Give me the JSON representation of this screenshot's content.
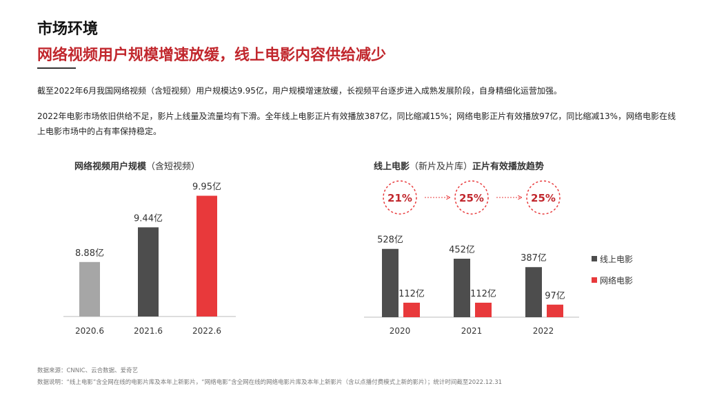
{
  "section_title": "市场环境",
  "headline": "网络视频用户规模增速放缓，线上电影内容供给减少",
  "paragraphs": [
    "截至2022年6月我国网络视频（含短视频）用户规模达9.95亿，用户规模增速放缓，长视频平台逐步进入成熟发展阶段，自身精细化运营加强。",
    "2022年电影市场依旧供给不足，影片上线量及流量均有下滑。全年线上电影正片有效播放387亿，同比缩减15%；网络电影正片有效播放97亿，同比缩减13%，网络电影在线上电影市场中的占有率保持稳定。"
  ],
  "chart_data": [
    {
      "type": "bar",
      "title_bold": "网络视频用户规模",
      "title_rest": "（含短视频）",
      "categories": [
        "2020.6",
        "2021.6",
        "2022.6"
      ],
      "values": [
        8.88,
        9.44,
        9.95
      ],
      "value_labels": [
        "8.88亿",
        "9.44亿",
        "9.95亿"
      ],
      "bar_colors": [
        "#a6a6a6",
        "#4d4d4d",
        "#e8393b"
      ]
    },
    {
      "type": "bar",
      "title_bold": "线上电影",
      "title_mid": "（新片及片库）",
      "title_bold2": "正片有效播放趋势",
      "categories": [
        "2020",
        "2021",
        "2022"
      ],
      "series": [
        {
          "name": "线上电影",
          "values": [
            528,
            452,
            387
          ],
          "labels": [
            "528亿",
            "452亿",
            "387亿"
          ],
          "color": "#4d4d4d"
        },
        {
          "name": "网络电影",
          "values": [
            112,
            112,
            97
          ],
          "labels": [
            "112亿",
            "112亿",
            "97亿"
          ],
          "color": "#e8393b"
        }
      ],
      "share_badges": [
        "21%",
        "25%",
        "25%"
      ],
      "legend_position": "right"
    }
  ],
  "footnotes": {
    "source": "数据来源：CNNIC、云合数据、爱奇艺",
    "note": "数据说明：“线上电影”含全网在线的电影片库及本年上新影片，“网络电影”含全网在线的网络电影片库及本年上新影片（含以点播付费模式上新的影片）；统计时间截至2022.12.31"
  },
  "colors": {
    "accent": "#c1272d",
    "red_bar": "#e8393b",
    "dark_bar": "#4d4d4d",
    "light_bar": "#a6a6a6"
  }
}
